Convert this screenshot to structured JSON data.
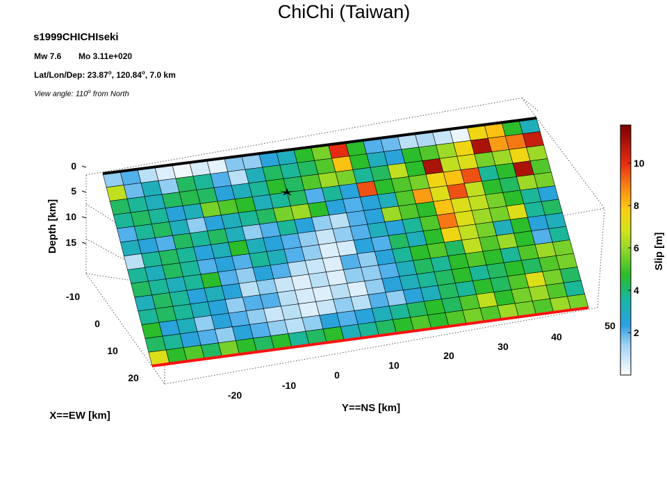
{
  "title": "ChiChi (Taiwan)",
  "subtitle": "s1999CHICHIseki",
  "info": {
    "mw": "Mw 7.6",
    "mo": "Mo 3.11e+020",
    "loc_prefix": "Lat/Lon/Dep: 23.87",
    "loc_deg": "o",
    "loc_mid": ", 120.84",
    "loc_deg2": "o",
    "loc_suffix": ", 7.0 km",
    "view_prefix": "View angle: 110",
    "view_deg": "o",
    "view_suffix": " from North"
  },
  "chart_data": {
    "type": "heatmap",
    "title": "ChiChi (Taiwan)",
    "zlabel": "Depth [km]",
    "xlabel": "X==EW [km]",
    "ylabel": "Y==NS [km]",
    "colorbar_label": "Slip [m]",
    "depth_ticks": [
      "0",
      "5",
      "10",
      "15"
    ],
    "x_ticks": [
      "-10",
      "0",
      "10",
      "20"
    ],
    "y_ticks": [
      "-20",
      "-10",
      "0",
      "10",
      "20",
      "30",
      "40",
      "50"
    ],
    "colorbar_ticks": [
      2,
      4,
      6,
      8,
      10
    ],
    "colorbar_range": [
      0,
      11.8
    ],
    "grid": true,
    "colors": {
      "top_edge": "#000000",
      "bottom_edge": "#ff1111",
      "hypocenter": "#000000"
    },
    "rows": 14,
    "cols": 25,
    "slip": [
      [
        1.5,
        2.0,
        1.0,
        0.5,
        0.2,
        0.6,
        0.4,
        1.6,
        1.5,
        2.5,
        3.0,
        4.5,
        5.5,
        10.0,
        4.5,
        2.0,
        1.8,
        1.0,
        1.2,
        0.8,
        0.3,
        7.5,
        8.0,
        4.5,
        3.0
      ],
      [
        6.5,
        1.8,
        3.0,
        1.5,
        4.0,
        3.5,
        2.0,
        1.0,
        3.0,
        4.0,
        3.5,
        4.0,
        5.0,
        8.0,
        4.5,
        3.0,
        2.5,
        4.5,
        5.0,
        6.0,
        7.5,
        11.0,
        8.5,
        9.0,
        10.5
      ],
      [
        4.0,
        3.5,
        3.0,
        4.0,
        4.2,
        4.0,
        2.5,
        3.0,
        3.5,
        4.5,
        4.0,
        5.0,
        6.0,
        5.5,
        3.5,
        4.0,
        6.5,
        4.5,
        11.0,
        6.5,
        7.0,
        5.5,
        6.0,
        7.5,
        6.0
      ],
      [
        3.5,
        4.0,
        3.5,
        2.5,
        3.0,
        5.5,
        5.0,
        4.5,
        3.0,
        3.5,
        4.0,
        2.0,
        3.5,
        2.5,
        9.5,
        4.5,
        5.0,
        5.5,
        7.5,
        8.0,
        9.5,
        3.5,
        4.5,
        11.0,
        5.0
      ],
      [
        2.0,
        3.5,
        4.0,
        3.0,
        1.5,
        2.5,
        3.0,
        3.5,
        4.0,
        5.5,
        6.0,
        4.5,
        2.5,
        2.0,
        2.5,
        3.0,
        5.0,
        8.5,
        7.0,
        9.5,
        6.5,
        4.5,
        4.0,
        6.0,
        5.5
      ],
      [
        3.0,
        2.5,
        2.0,
        4.0,
        3.5,
        4.0,
        3.0,
        1.5,
        2.0,
        3.5,
        2.5,
        1.5,
        1.0,
        2.0,
        2.5,
        6.0,
        5.0,
        4.5,
        8.0,
        7.0,
        6.5,
        5.5,
        4.5,
        3.5,
        2.5
      ],
      [
        1.0,
        3.5,
        4.0,
        3.5,
        2.5,
        3.0,
        4.5,
        3.0,
        2.5,
        2.0,
        1.5,
        0.8,
        1.5,
        2.0,
        3.0,
        2.5,
        3.5,
        5.0,
        9.0,
        7.0,
        6.0,
        5.5,
        7.0,
        3.5,
        4.0
      ],
      [
        3.5,
        3.0,
        4.0,
        3.5,
        2.0,
        2.5,
        2.0,
        3.5,
        3.0,
        2.0,
        1.5,
        0.5,
        0.6,
        2.5,
        2.0,
        4.0,
        3.0,
        4.5,
        7.5,
        6.5,
        5.5,
        3.0,
        4.5,
        2.5,
        3.0
      ],
      [
        4.0,
        3.5,
        3.0,
        3.5,
        4.5,
        2.0,
        1.5,
        2.5,
        2.0,
        1.0,
        0.8,
        0.5,
        2.0,
        1.5,
        2.5,
        3.5,
        4.5,
        5.0,
        4.0,
        6.5,
        5.0,
        6.0,
        4.5,
        2.0,
        3.5
      ],
      [
        3.0,
        4.0,
        3.5,
        2.5,
        3.0,
        2.5,
        1.0,
        1.5,
        0.8,
        0.5,
        1.0,
        0.5,
        1.5,
        1.5,
        2.0,
        3.0,
        4.0,
        3.5,
        4.5,
        5.0,
        4.5,
        3.5,
        5.0,
        6.0,
        5.5
      ],
      [
        3.5,
        4.0,
        3.5,
        3.0,
        2.5,
        1.5,
        2.0,
        2.0,
        1.0,
        0.6,
        0.5,
        1.0,
        0.5,
        1.5,
        2.5,
        3.0,
        3.5,
        4.0,
        4.5,
        3.5,
        4.0,
        4.5,
        4.0,
        5.0,
        5.5
      ],
      [
        4.5,
        2.5,
        3.0,
        1.5,
        2.5,
        2.0,
        1.5,
        0.8,
        1.0,
        0.5,
        0.8,
        1.5,
        1.0,
        2.0,
        1.5,
        2.5,
        3.0,
        4.0,
        3.5,
        4.5,
        4.0,
        5.0,
        7.0,
        5.5,
        4.0
      ],
      [
        4.0,
        3.5,
        2.5,
        2.0,
        1.5,
        2.5,
        2.0,
        1.5,
        1.0,
        1.5,
        2.5,
        2.0,
        2.5,
        3.0,
        3.5,
        4.0,
        4.5,
        4.0,
        5.0,
        6.5,
        4.5,
        5.5,
        6.0,
        5.0,
        3.5
      ],
      [
        7.0,
        4.5,
        5.0,
        4.0,
        5.5,
        4.5,
        4.0,
        4.5,
        3.5,
        4.0,
        4.5,
        3.0,
        3.5,
        4.0,
        4.5,
        5.0,
        4.5,
        5.0,
        5.5,
        5.0,
        6.0,
        5.5,
        5.0,
        6.0,
        5.5
      ]
    ],
    "hypocenter_cell": [
      3.0,
      10.0
    ]
  }
}
